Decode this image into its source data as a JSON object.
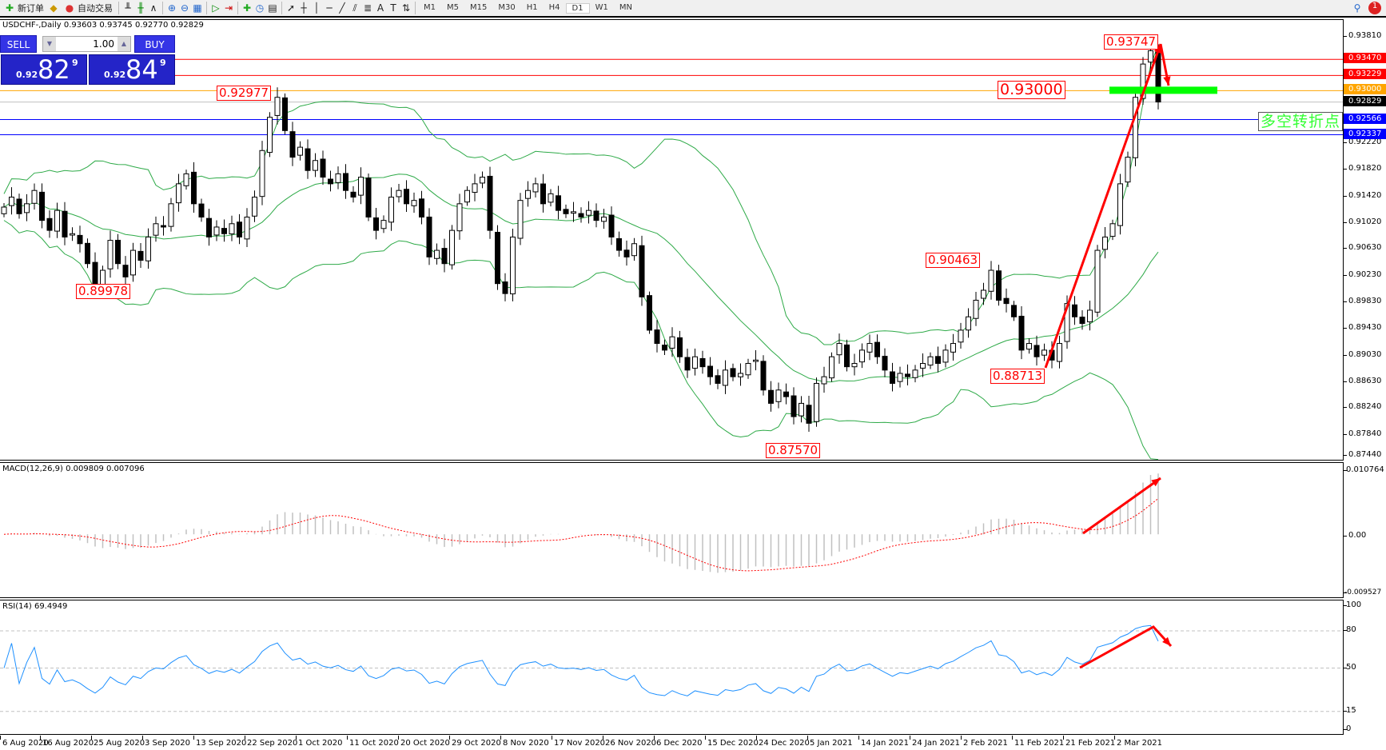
{
  "toolbar": {
    "new_order": "新订单",
    "auto_trading": "自动交易",
    "timeframes": [
      "M1",
      "M5",
      "M15",
      "M30",
      "H1",
      "H4",
      "D1",
      "W1",
      "MN"
    ],
    "active_timeframe": "D1",
    "notification_count": "1"
  },
  "chart": {
    "title": "USDCHF-,Daily  0.93603 0.93745 0.92770 0.92829",
    "trade_panel": {
      "sell_label": "SELL",
      "buy_label": "BUY",
      "lot": "1.00",
      "sell_small": "0.92",
      "sell_big": "82",
      "sell_sup": "9",
      "buy_small": "0.92",
      "buy_big": "84",
      "buy_sup": "9",
      "color": "#2424c8"
    },
    "price_labels": [
      "0.92977",
      "0.89978",
      "0.90463",
      "0.88713",
      "0.87570",
      "0.93747"
    ],
    "key_level_label": "0.93000",
    "turning_point_text": "多空转折点",
    "hlines": [
      {
        "price": 0.9347,
        "label": "0.93470",
        "color": "#ff0000"
      },
      {
        "price": 0.93229,
        "label": "0.93229",
        "color": "#ff0000"
      },
      {
        "price": 0.93,
        "label": "0.93000",
        "color": "#ffa500"
      },
      {
        "price": 0.92829,
        "label": "0.92829",
        "color": "#000000"
      },
      {
        "price": 0.92566,
        "label": "0.92566",
        "color": "#0000ff"
      },
      {
        "price": 0.92337,
        "label": "0.92337",
        "color": "#0000ff"
      }
    ],
    "price_ticks": [
      "0.93810",
      "0.92220",
      "0.91820",
      "0.91420",
      "0.91020",
      "0.90630",
      "0.90230",
      "0.89830",
      "0.89430",
      "0.89030",
      "0.88630",
      "0.88240",
      "0.87840",
      "0.87440"
    ],
    "closes": [
      0.9125,
      0.914,
      0.9115,
      0.913,
      0.915,
      0.9105,
      0.909,
      0.912,
      0.908,
      0.9085,
      0.907,
      0.904,
      0.901,
      0.903,
      0.9075,
      0.904,
      0.902,
      0.906,
      0.9045,
      0.908,
      0.91,
      0.9095,
      0.913,
      0.916,
      0.9175,
      0.913,
      0.911,
      0.908,
      0.9095,
      0.9085,
      0.91,
      0.908,
      0.911,
      0.914,
      0.921,
      0.926,
      0.929,
      0.924,
      0.92,
      0.9215,
      0.918,
      0.9195,
      0.917,
      0.916,
      0.9175,
      0.915,
      0.914,
      0.917,
      0.911,
      0.909,
      0.9105,
      0.914,
      0.915,
      0.913,
      0.9135,
      0.911,
      0.905,
      0.906,
      0.904,
      0.909,
      0.913,
      0.915,
      0.916,
      0.917,
      0.909,
      0.901,
      0.8995,
      0.908,
      0.9135,
      0.915,
      0.916,
      0.913,
      0.9145,
      0.912,
      0.9115,
      0.9118,
      0.911,
      0.912,
      0.9105,
      0.911,
      0.908,
      0.906,
      0.905,
      0.907,
      0.899,
      0.894,
      0.892,
      0.891,
      0.893,
      0.89,
      0.888,
      0.89,
      0.8885,
      0.887,
      0.886,
      0.888,
      0.887,
      0.8875,
      0.889,
      0.8895,
      0.885,
      0.883,
      0.885,
      0.884,
      0.881,
      0.883,
      0.88,
      0.886,
      0.887,
      0.89,
      0.892,
      0.8885,
      0.889,
      0.891,
      0.892,
      0.89,
      0.888,
      0.886,
      0.8875,
      0.887,
      0.888,
      0.889,
      0.89,
      0.889,
      0.891,
      0.892,
      0.894,
      0.896,
      0.8985,
      0.9,
      0.903,
      0.8985,
      0.898,
      0.896,
      0.891,
      0.892,
      0.89,
      0.891,
      0.8895,
      0.892,
      0.898,
      0.896,
      0.895,
      0.897,
      0.906,
      0.908,
      0.91,
      0.916,
      0.92,
      0.929,
      0.934,
      0.936,
      0.9283
    ],
    "date_labels": [
      "6 Aug 2020",
      "16 Aug 2020",
      "25 Aug 2020",
      "3 Sep 2020",
      "13 Sep 2020",
      "22 Sep 2020",
      "1 Oct 2020",
      "11 Oct 2020",
      "20 Oct 2020",
      "29 Oct 2020",
      "8 Nov 2020",
      "17 Nov 2020",
      "26 Nov 2020",
      "6 Dec 2020",
      "15 Dec 2020",
      "24 Dec 2020",
      "5 Jan 2021",
      "14 Jan 2021",
      "24 Jan 2021",
      "2 Feb 2021",
      "11 Feb 2021",
      "21 Feb 2021",
      "2 Mar 2021"
    ]
  },
  "macd": {
    "title": "MACD(12,26,9) 0.009809 0.007096",
    "max_label": "0.010764",
    "zero_label": "0.00",
    "min_label": "-0.009527",
    "max": 0.010764,
    "min": -0.009527
  },
  "rsi": {
    "title": "RSI(14) 69.4949",
    "levels": [
      "100",
      "80",
      "50",
      "15",
      "0"
    ],
    "line_color": "#1e90ff"
  }
}
